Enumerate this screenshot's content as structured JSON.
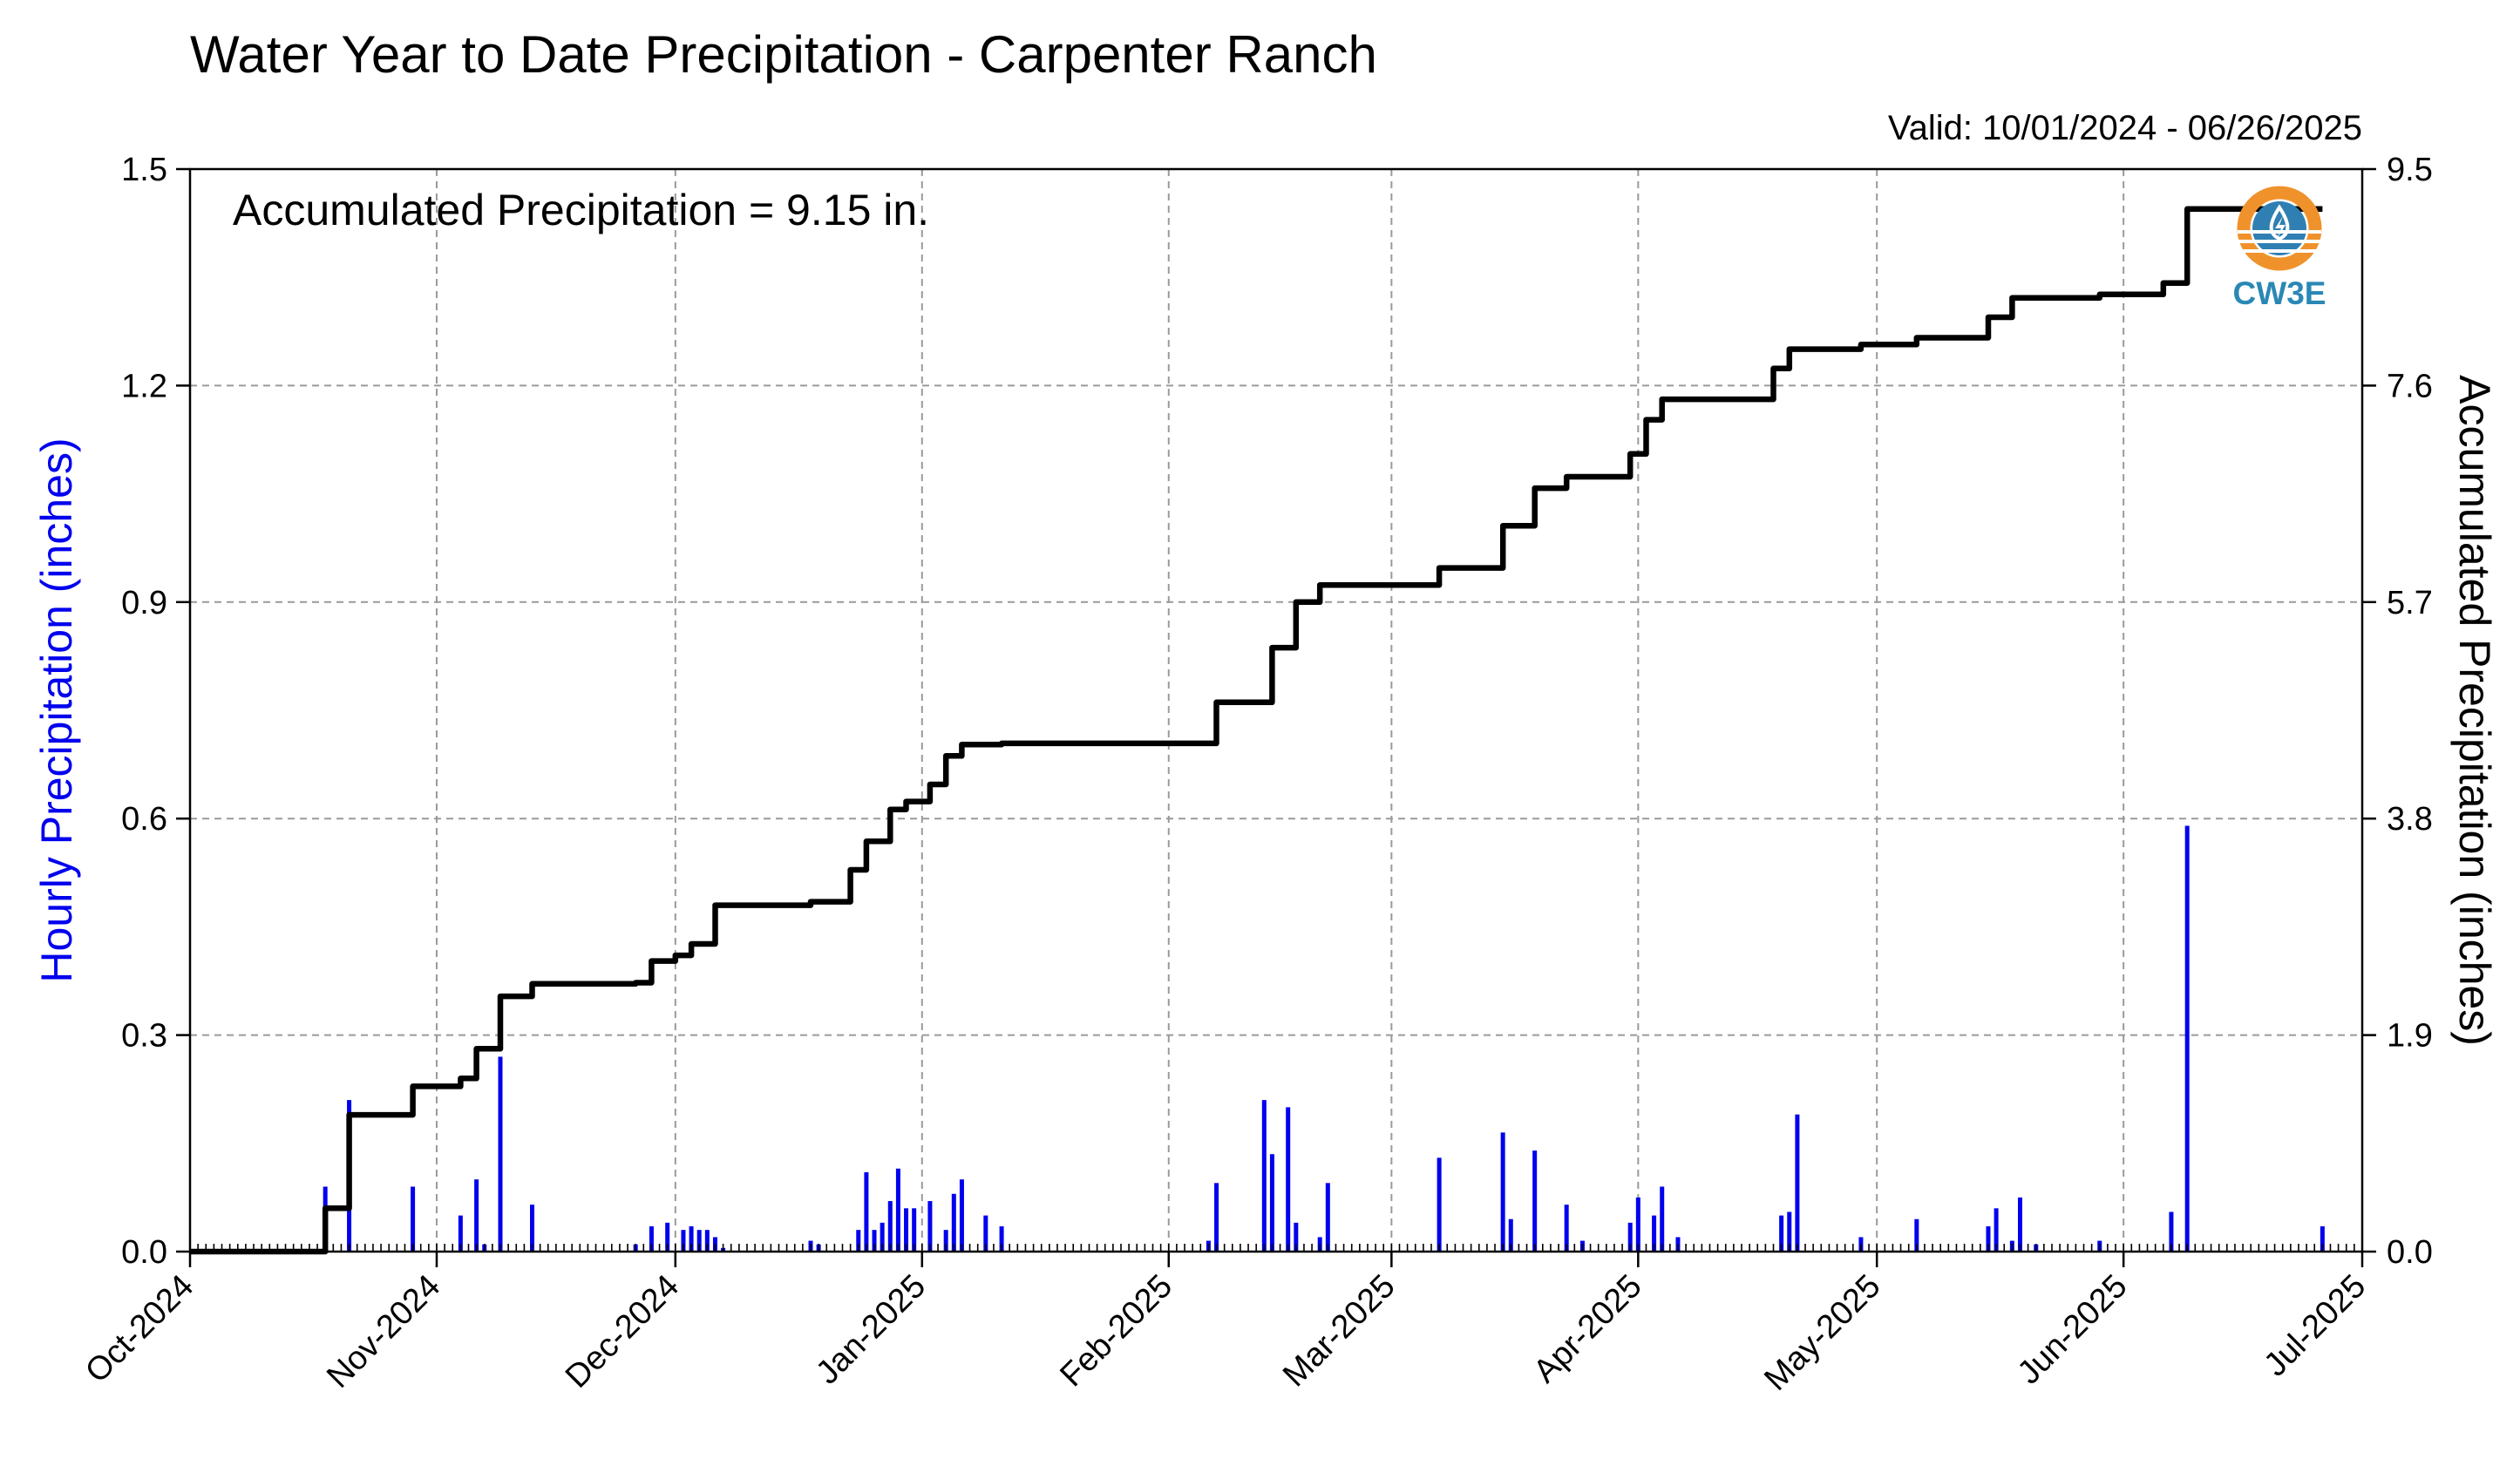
{
  "chart_data": {
    "type": "bar",
    "title": "Water Year to Date Precipitation - Carpenter Ranch",
    "valid_text": "Valid: 10/01/2024 - 06/26/2025",
    "annotation": "Accumulated Precipitation = 9.15 in.",
    "ylabel": "Hourly Precipitation (inches)",
    "ylabel_right": "Accumulated Precipitation (inches)",
    "ylabel_color": "#0000ee",
    "bar_color": "#0000ee",
    "line_color": "#000000",
    "grid": true,
    "xlim": [
      "2024-10-01",
      "2025-07-01"
    ],
    "ylim": [
      0,
      1.5
    ],
    "ylim_right": [
      0,
      9.5
    ],
    "x_ticks": [
      {
        "date": "2024-10-01",
        "label": "Oct-2024"
      },
      {
        "date": "2024-11-01",
        "label": "Nov-2024"
      },
      {
        "date": "2024-12-01",
        "label": "Dec-2024"
      },
      {
        "date": "2025-01-01",
        "label": "Jan-2025"
      },
      {
        "date": "2025-02-01",
        "label": "Feb-2025"
      },
      {
        "date": "2025-03-01",
        "label": "Mar-2025"
      },
      {
        "date": "2025-04-01",
        "label": "Apr-2025"
      },
      {
        "date": "2025-05-01",
        "label": "May-2025"
      },
      {
        "date": "2025-06-01",
        "label": "Jun-2025"
      },
      {
        "date": "2025-07-01",
        "label": "Jul-2025"
      }
    ],
    "y_ticks": [
      {
        "value": 0.0,
        "label": "0.0"
      },
      {
        "value": 0.3,
        "label": "0.3"
      },
      {
        "value": 0.6,
        "label": "0.6"
      },
      {
        "value": 0.9,
        "label": "0.9"
      },
      {
        "value": 1.2,
        "label": "1.2"
      },
      {
        "value": 1.5,
        "label": "1.5"
      }
    ],
    "y_ticks_right": [
      {
        "value": 0.0,
        "label": "0.0"
      },
      {
        "value": 1.9,
        "label": "1.9"
      },
      {
        "value": 3.8,
        "label": "3.8"
      },
      {
        "value": 5.7,
        "label": "5.7"
      },
      {
        "value": 7.6,
        "label": "7.6"
      },
      {
        "value": 9.5,
        "label": "9.5"
      }
    ],
    "series": [
      {
        "type": "bar",
        "axis": "left",
        "x": [
          "2024-10-18",
          "2024-10-21",
          "2024-10-29",
          "2024-11-04",
          "2024-11-06",
          "2024-11-07",
          "2024-11-09",
          "2024-11-13",
          "2024-11-26",
          "2024-11-28",
          "2024-11-30",
          "2024-12-02",
          "2024-12-03",
          "2024-12-04",
          "2024-12-05",
          "2024-12-06",
          "2024-12-07",
          "2024-12-18",
          "2024-12-19",
          "2024-12-24",
          "2024-12-25",
          "2024-12-26",
          "2024-12-27",
          "2024-12-28",
          "2024-12-29",
          "2024-12-30",
          "2024-12-31",
          "2025-01-02",
          "2025-01-04",
          "2025-01-05",
          "2025-01-06",
          "2025-01-09",
          "2025-01-11",
          "2025-02-06",
          "2025-02-07",
          "2025-02-13",
          "2025-02-14",
          "2025-02-16",
          "2025-02-17",
          "2025-02-20",
          "2025-02-21",
          "2025-03-07",
          "2025-03-15",
          "2025-03-16",
          "2025-03-19",
          "2025-03-23",
          "2025-03-25",
          "2025-03-31",
          "2025-04-01",
          "2025-04-03",
          "2025-04-04",
          "2025-04-06",
          "2025-04-19",
          "2025-04-20",
          "2025-04-21",
          "2025-04-29",
          "2025-05-06",
          "2025-05-15",
          "2025-05-16",
          "2025-05-18",
          "2025-05-19",
          "2025-05-21",
          "2025-05-29",
          "2025-06-07",
          "2025-06-09",
          "2025-06-26"
        ],
        "values": [
          0.09,
          0.21,
          0.09,
          0.05,
          0.1,
          0.01,
          0.27,
          0.065,
          0.01,
          0.035,
          0.04,
          0.03,
          0.035,
          0.03,
          0.03,
          0.02,
          0.005,
          0.015,
          0.01,
          0.03,
          0.11,
          0.03,
          0.04,
          0.07,
          0.115,
          0.06,
          0.06,
          0.07,
          0.03,
          0.08,
          0.1,
          0.05,
          0.035,
          0.015,
          0.095,
          0.21,
          0.135,
          0.2,
          0.04,
          0.02,
          0.095,
          0.13,
          0.165,
          0.045,
          0.14,
          0.065,
          0.015,
          0.04,
          0.075,
          0.05,
          0.09,
          0.02,
          0.05,
          0.055,
          0.19,
          0.02,
          0.045,
          0.035,
          0.06,
          0.015,
          0.075,
          0.01,
          0.015,
          0.055,
          0.59,
          0.035
        ]
      },
      {
        "type": "step-line",
        "axis": "right",
        "x": [
          "2024-10-01",
          "2024-10-18",
          "2024-10-18",
          "2024-10-21",
          "2024-10-21",
          "2024-10-29",
          "2024-10-29",
          "2024-11-04",
          "2024-11-04",
          "2024-11-06",
          "2024-11-06",
          "2024-11-09",
          "2024-11-09",
          "2024-11-13",
          "2024-11-13",
          "2024-11-26",
          "2024-11-26",
          "2024-11-28",
          "2024-11-28",
          "2024-12-01",
          "2024-12-01",
          "2024-12-03",
          "2024-12-03",
          "2024-12-06",
          "2024-12-06",
          "2024-12-18",
          "2024-12-18",
          "2024-12-23",
          "2024-12-23",
          "2024-12-25",
          "2024-12-25",
          "2024-12-28",
          "2024-12-28",
          "2024-12-30",
          "2024-12-30",
          "2025-01-02",
          "2025-01-02",
          "2025-01-04",
          "2025-01-04",
          "2025-01-06",
          "2025-01-06",
          "2025-01-11",
          "2025-01-11",
          "2025-02-07",
          "2025-02-07",
          "2025-02-14",
          "2025-02-14",
          "2025-02-17",
          "2025-02-17",
          "2025-02-20",
          "2025-02-20",
          "2025-03-07",
          "2025-03-07",
          "2025-03-15",
          "2025-03-15",
          "2025-03-19",
          "2025-03-19",
          "2025-03-23",
          "2025-03-23",
          "2025-03-31",
          "2025-03-31",
          "2025-04-02",
          "2025-04-02",
          "2025-04-04",
          "2025-04-04",
          "2025-04-18",
          "2025-04-18",
          "2025-04-20",
          "2025-04-20",
          "2025-04-29",
          "2025-04-29",
          "2025-05-06",
          "2025-05-06",
          "2025-05-15",
          "2025-05-15",
          "2025-05-18",
          "2025-05-18",
          "2025-05-29",
          "2025-05-29",
          "2025-06-06",
          "2025-06-06",
          "2025-06-09",
          "2025-06-09",
          "2025-06-26"
        ],
        "values": [
          0.0,
          0.0,
          0.38,
          0.38,
          1.2,
          1.2,
          1.45,
          1.45,
          1.52,
          1.52,
          1.78,
          1.78,
          2.24,
          2.24,
          2.35,
          2.35,
          2.36,
          2.36,
          2.55,
          2.55,
          2.6,
          2.6,
          2.7,
          2.7,
          3.04,
          3.04,
          3.07,
          3.07,
          3.35,
          3.35,
          3.6,
          3.6,
          3.88,
          3.88,
          3.95,
          3.95,
          4.1,
          4.1,
          4.35,
          4.35,
          4.45,
          4.45,
          4.46,
          4.46,
          4.82,
          4.82,
          5.3,
          5.3,
          5.7,
          5.7,
          5.85,
          5.85,
          6.0,
          6.0,
          6.37,
          6.37,
          6.7,
          6.7,
          6.8,
          6.8,
          7.0,
          7.0,
          7.3,
          7.3,
          7.48,
          7.48,
          7.75,
          7.75,
          7.92,
          7.92,
          7.96,
          7.96,
          8.02,
          8.02,
          8.2,
          8.2,
          8.37,
          8.37,
          8.4,
          8.4,
          8.5,
          8.5,
          9.15,
          9.15
        ]
      }
    ]
  },
  "logo": {
    "text": "CW3E",
    "ring_color": "#f0922b",
    "wave_color": "#2f7fb3",
    "text_color": "#2a88b5"
  }
}
